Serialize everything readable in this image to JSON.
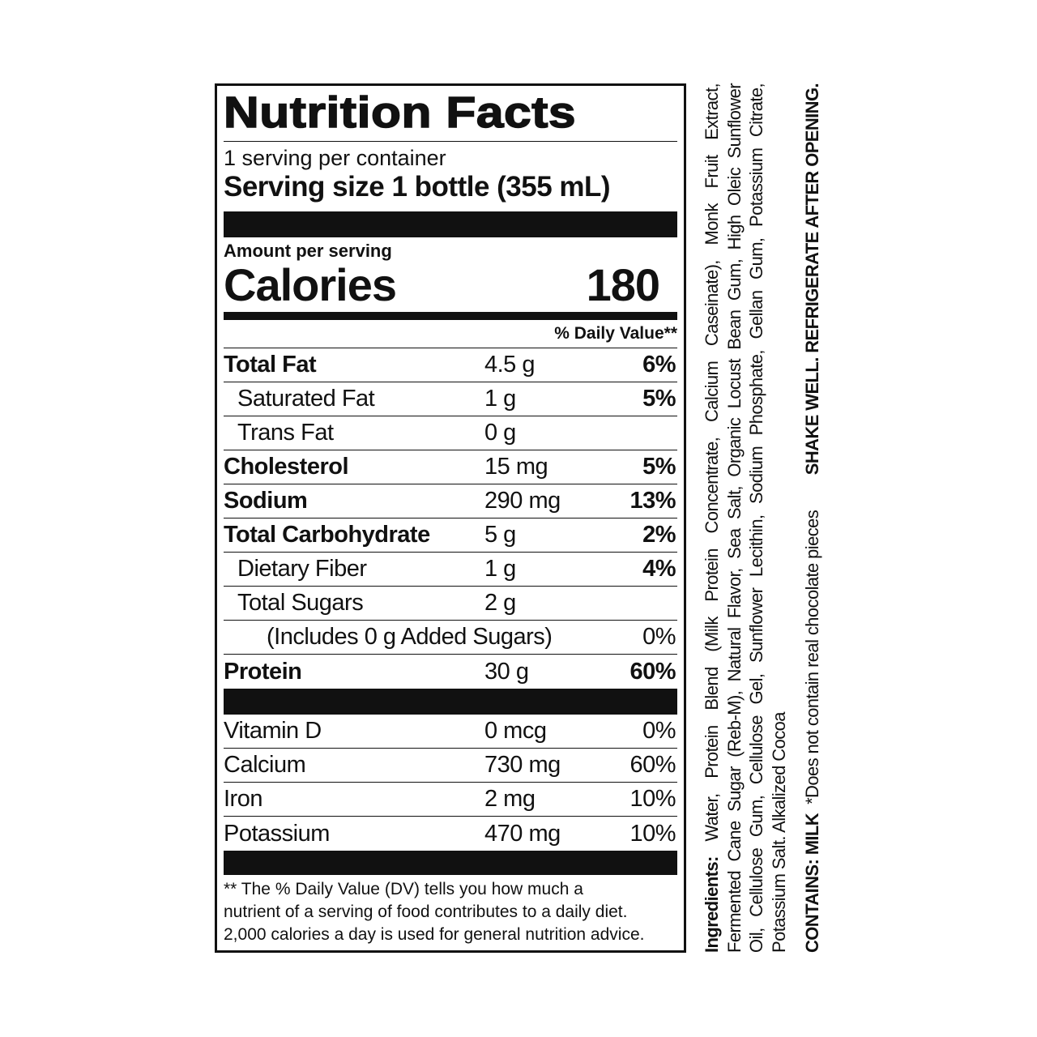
{
  "label": {
    "title": "Nutrition Facts",
    "servings": "1 serving per container",
    "serving_size": "Serving size 1 bottle (355 mL)",
    "amount_per_serving": "Amount per serving",
    "calories_label": "Calories",
    "calories_value": "180",
    "dv_header": "% Daily Value**",
    "nutrients": [
      {
        "name": "Total Fat",
        "amount": "4.5 g",
        "dv": "6%"
      },
      {
        "name": "Saturated Fat",
        "amount": "1 g",
        "dv": "5%"
      },
      {
        "name": "Trans Fat",
        "amount": "0 g",
        "dv": ""
      },
      {
        "name": "Cholesterol",
        "amount": "15 mg",
        "dv": "5%"
      },
      {
        "name": "Sodium",
        "amount": "290 mg",
        "dv": "13%"
      },
      {
        "name": "Total Carbohydrate",
        "amount": "5 g",
        "dv": "2%"
      },
      {
        "name": "Dietary Fiber",
        "amount": "1 g",
        "dv": "4%"
      },
      {
        "name": "Total Sugars",
        "amount": "2 g",
        "dv": ""
      },
      {
        "name": "(Includes 0 g Added Sugars)",
        "amount": "",
        "dv": "0%"
      },
      {
        "name": "Protein",
        "amount": "30 g",
        "dv": "60%"
      }
    ],
    "vitamins": [
      {
        "name": "Vitamin D",
        "amount": "0 mcg",
        "dv": "0%"
      },
      {
        "name": "Calcium",
        "amount": "730 mg",
        "dv": "60%"
      },
      {
        "name": "Iron",
        "amount": "2 mg",
        "dv": "10%"
      },
      {
        "name": "Potassium",
        "amount": "470 mg",
        "dv": "10%"
      }
    ],
    "footnote": [
      "** The % Daily Value (DV) tells you how much a",
      "nutrient of a serving of food contributes to a daily diet.",
      "2,000 calories a day is used for general nutrition advice."
    ]
  },
  "side": {
    "ingredients_label": "Ingredients:",
    "ingredients_lines": [
      " Water, Protein Blend (Milk Protein Concentrate, Calcium Caseinate), Monk Fruit Extract,",
      "Fermented Cane Sugar (Reb-M), Natural Flavor, Sea Salt, Organic Locust Bean Gum, High Oleic Sunflower",
      "Oil, Cellulose Gum, Cellulose Gel, Sunflower Lecithin, Sodium Phosphate, Gellan Gum, Potassium Citrate,",
      "Potassium Salt. Alkalized Cocoa"
    ],
    "contains": "CONTAINS: MILK",
    "chocolate_note": "*Does not contain real chocolate pieces",
    "storage": "SHAKE WELL. REFRIGERATE AFTER OPENING."
  }
}
